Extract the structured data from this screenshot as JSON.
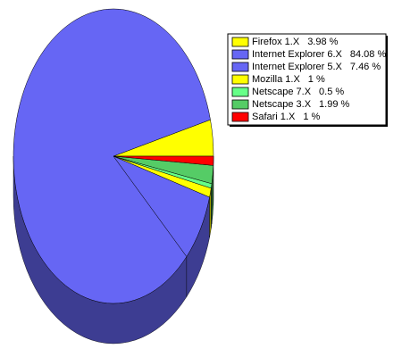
{
  "chart_data": {
    "type": "pie",
    "categories": [
      "Firefox 1.X",
      "Internet Explorer 6.X",
      "Internet Explorer 5.X",
      "Mozilla 1.X",
      "Netscape 7.X",
      "Netscape 3.X",
      "Safari 1.X"
    ],
    "values": [
      3.98,
      84.08,
      7.46,
      1,
      0.5,
      1.99,
      1
    ],
    "value_labels": [
      "3.98 %",
      "84.08 %",
      "7.46 %",
      "1 %",
      "0.5 %",
      "1.99 %",
      "1 %"
    ],
    "colors": [
      "#ffff00",
      "#6666f4",
      "#6666f4",
      "#ffff00",
      "#66ff88",
      "#55cc66",
      "#ff0000"
    ],
    "legend": "top-right"
  }
}
